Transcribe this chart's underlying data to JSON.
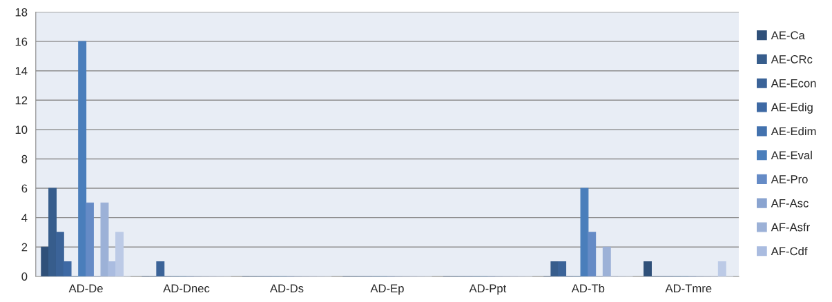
{
  "chart_data": {
    "type": "bar",
    "categories": [
      "AD-De",
      "AD-Dnec",
      "AD-Ds",
      "AD-Ep",
      "AD-Ppt",
      "AD-Tb",
      "AD-Tmre"
    ],
    "series": [
      {
        "name": "AE-Ca",
        "color": "#2f5079",
        "values": [
          2,
          0,
          0,
          0,
          0,
          0,
          1
        ]
      },
      {
        "name": "AE-CRc",
        "color": "#375d8c",
        "values": [
          6,
          0,
          0,
          0,
          0,
          1,
          0
        ]
      },
      {
        "name": "AE-Econ",
        "color": "#3b6398",
        "values": [
          3,
          1,
          0,
          0,
          0,
          1,
          0
        ]
      },
      {
        "name": "AE-Edig",
        "color": "#3e69a4",
        "values": [
          1,
          0,
          0,
          0,
          0,
          0,
          0
        ]
      },
      {
        "name": "AE-Edim",
        "color": "#4372ae",
        "values": [
          0,
          0,
          0,
          0,
          0,
          0,
          0
        ]
      },
      {
        "name": "AE-Eval",
        "color": "#4a7ebb",
        "values": [
          16,
          0,
          0,
          0,
          0,
          6,
          0
        ]
      },
      {
        "name": "AE-Pro",
        "color": "#658bc6",
        "values": [
          5,
          0,
          0,
          0,
          0,
          3,
          0
        ]
      },
      {
        "name": "AF-Asc",
        "color": "#8aa4d0",
        "values": [
          0,
          0,
          0,
          0,
          0,
          0,
          0
        ]
      },
      {
        "name": "AF-Asfr",
        "color": "#9cb1d7",
        "values": [
          5,
          0,
          0,
          0,
          0,
          2,
          0
        ]
      },
      {
        "name": "AF-Cdf",
        "color": "#aabce0",
        "values": [
          1,
          0,
          0,
          0,
          0,
          0,
          0
        ]
      },
      {
        "color": "#bccae6",
        "values": [
          3,
          0,
          0,
          0,
          0,
          0,
          1
        ]
      },
      {
        "color": "#c9d4ea",
        "values": [
          0,
          0,
          0,
          0,
          0,
          0,
          0
        ]
      }
    ],
    "ylim": [
      0,
      18
    ],
    "yticks": [
      0,
      2,
      4,
      6,
      8,
      10,
      12,
      14,
      16,
      18
    ],
    "grid": "y",
    "legend": "right"
  }
}
